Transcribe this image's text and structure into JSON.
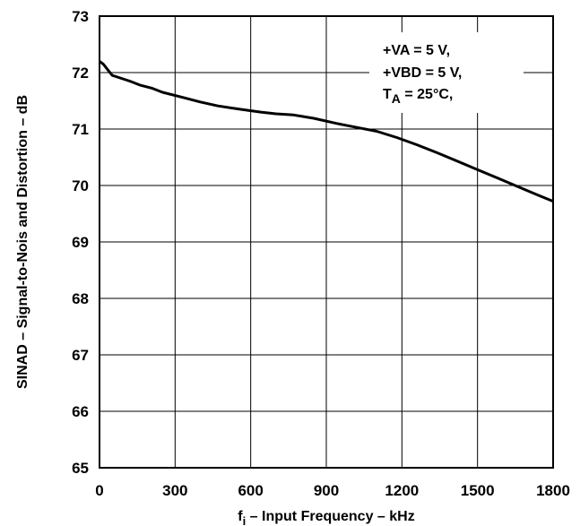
{
  "chart_data": {
    "type": "line",
    "xlabel": "fi – Input Frequency – kHz",
    "xlabel_main": "f",
    "xlabel_sub": "i",
    "xlabel_rest": " – Input Frequency – kHz",
    "ylabel": "SINAD – Signal-to-Nois and Distortion – dB",
    "xlim": [
      0,
      1800
    ],
    "ylim": [
      65,
      73
    ],
    "xticks": [
      "0",
      "300",
      "600",
      "900",
      "1200",
      "1500",
      "1800"
    ],
    "yticks": [
      "65",
      "66",
      "67",
      "68",
      "69",
      "70",
      "71",
      "72",
      "73"
    ],
    "grid": true,
    "annotation": {
      "line1": "+VA = 5 V,",
      "line2": "+VBD = 5 V,",
      "line3_main": "T",
      "line3_sub": "A",
      "line3_rest": " = 25°C,"
    },
    "series": [
      {
        "x": [
          0,
          15,
          50,
          120,
          160,
          210,
          250,
          330,
          400,
          470,
          560,
          640,
          700,
          770,
          850,
          940,
          1030,
          1100,
          1180,
          1260,
          1340,
          1420,
          1500,
          1580,
          1660,
          1740,
          1800
        ],
        "y": [
          72.2,
          72.15,
          71.95,
          71.85,
          71.78,
          71.72,
          71.65,
          71.56,
          71.48,
          71.41,
          71.35,
          71.3,
          71.27,
          71.25,
          71.19,
          71.1,
          71.02,
          70.96,
          70.85,
          70.72,
          70.58,
          70.43,
          70.28,
          70.13,
          69.98,
          69.83,
          69.72
        ],
        "color": "#000000"
      }
    ]
  }
}
